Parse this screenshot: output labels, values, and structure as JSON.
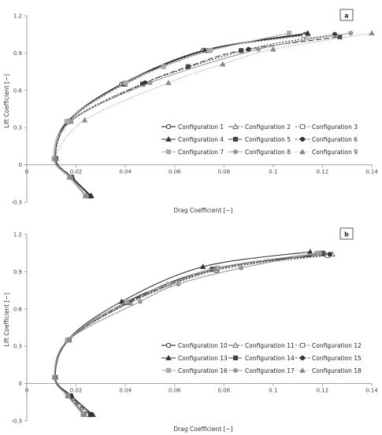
{
  "chart_data": [
    {
      "type": "line",
      "panel_label": "a",
      "xlabel": "Drag Coefficient [−]",
      "ylabel": "Lift Coefficient [−]",
      "xlim": [
        0,
        0.14
      ],
      "ylim": [
        -0.3,
        1.2
      ],
      "xticks": [
        "0",
        "0.02",
        "0.04",
        "0.06",
        "0.08",
        "0.1",
        "0.12",
        "0.14"
      ],
      "yticks": [
        "-0.3",
        "0",
        "0.3",
        "0.6",
        "0.9",
        "1.2"
      ],
      "grid": false,
      "legend_position": "lower-right",
      "series": [
        {
          "name": "Configuration 1",
          "color": "#111111",
          "dash": "",
          "marker": "circle-open",
          "points": [
            [
              0.0257,
              -0.25
            ],
            [
              0.018,
              -0.1
            ],
            [
              0.0115,
              0.05
            ],
            [
              0.0165,
              0.35
            ],
            [
              0.0385,
              0.65
            ],
            [
              0.0715,
              0.92
            ],
            [
              0.113,
              1.05
            ]
          ]
        },
        {
          "name": "Configuration 2",
          "color": "#555555",
          "dash": "6,2",
          "marker": "triangle-open",
          "points": [
            [
              0.026,
              -0.25
            ],
            [
              0.0185,
              -0.1
            ],
            [
              0.0118,
              0.05
            ],
            [
              0.0168,
              0.35
            ],
            [
              0.039,
              0.65
            ],
            [
              0.072,
              0.92
            ],
            [
              0.114,
              1.05
            ]
          ]
        },
        {
          "name": "Configuration 3",
          "color": "#666666",
          "dash": "2,2",
          "marker": "square-open",
          "points": [
            [
              0.0255,
              -0.25
            ],
            [
              0.0182,
              -0.1
            ],
            [
              0.0118,
              0.05
            ],
            [
              0.0172,
              0.35
            ],
            [
              0.04,
              0.65
            ],
            [
              0.0735,
              0.92
            ],
            [
              0.1125,
              1.04
            ]
          ]
        },
        {
          "name": "Configuration 4",
          "color": "#333333",
          "dash": "",
          "marker": "triangle-filled",
          "points": [
            [
              0.0262,
              -0.25
            ],
            [
              0.0184,
              -0.1
            ],
            [
              0.0116,
              0.05
            ],
            [
              0.0167,
              0.35
            ],
            [
              0.0392,
              0.65
            ],
            [
              0.0722,
              0.92
            ],
            [
              0.114,
              1.06
            ]
          ]
        },
        {
          "name": "Configuration 5",
          "color": "#444444",
          "dash": "7,3",
          "marker": "square-filled",
          "points": [
            [
              0.0255,
              -0.25
            ],
            [
              0.0182,
              -0.1
            ],
            [
              0.0116,
              0.05
            ],
            [
              0.0178,
              0.35
            ],
            [
              0.047,
              0.65
            ],
            [
              0.0655,
              0.79
            ],
            [
              0.087,
              0.92
            ],
            [
              0.127,
              1.03
            ]
          ]
        },
        {
          "name": "Configuration 6",
          "color": "#333333",
          "dash": "2,2",
          "marker": "circle-filled",
          "points": [
            [
              0.0258,
              -0.25
            ],
            [
              0.0183,
              -0.1
            ],
            [
              0.0117,
              0.05
            ],
            [
              0.0175,
              0.35
            ],
            [
              0.048,
              0.66
            ],
            [
              0.09,
              0.93
            ],
            [
              0.125,
              1.05
            ]
          ]
        },
        {
          "name": "Configuration 7",
          "color": "#aaaaaa",
          "dash": "",
          "marker": "square-filled",
          "points": [
            [
              0.0238,
              -0.25
            ],
            [
              0.0172,
              -0.1
            ],
            [
              0.011,
              0.05
            ],
            [
              0.0162,
              0.35
            ],
            [
              0.04,
              0.66
            ],
            [
              0.0555,
              0.79
            ],
            [
              0.0745,
              0.92
            ],
            [
              0.1065,
              1.06
            ]
          ]
        },
        {
          "name": "Configuration 8",
          "color": "#999999",
          "dash": "",
          "marker": "circle-filled",
          "points": [
            [
              0.0242,
              -0.25
            ],
            [
              0.0178,
              -0.1
            ],
            [
              0.0114,
              0.05
            ],
            [
              0.0178,
              0.35
            ],
            [
              0.05,
              0.66
            ],
            [
              0.094,
              0.93
            ],
            [
              0.1315,
              1.06
            ]
          ]
        },
        {
          "name": "Configuration 9",
          "color": "#888888",
          "dash": "1,2",
          "marker": "triangle-filled",
          "points": [
            [
              0.024,
              -0.25
            ],
            [
              0.0178,
              -0.1
            ],
            [
              0.0116,
              0.05
            ],
            [
              0.0235,
              0.36
            ],
            [
              0.0575,
              0.66
            ],
            [
              0.0795,
              0.81
            ],
            [
              0.1,
              0.93
            ],
            [
              0.14,
              1.06
            ]
          ]
        }
      ]
    },
    {
      "type": "line",
      "panel_label": "b",
      "xlabel": "Drag Coefficient [−]",
      "ylabel": "Lift Coefficient [−]",
      "xlim": [
        0,
        0.14
      ],
      "ylim": [
        -0.3,
        1.2
      ],
      "xticks": [
        "0",
        "0.02",
        "0.04",
        "0.06",
        "0.08",
        "0.1",
        "0.12",
        "0.14"
      ],
      "yticks": [
        "-0.3",
        "0",
        "0.3",
        "0.6",
        "0.9",
        "1.2"
      ],
      "grid": false,
      "legend_position": "lower-right",
      "series": [
        {
          "name": "Configuration 10",
          "color": "#111111",
          "dash": "",
          "marker": "circle-open",
          "points": [
            [
              0.0235,
              -0.25
            ],
            [
              0.0168,
              -0.1
            ],
            [
              0.0115,
              0.05
            ],
            [
              0.0168,
              0.35
            ],
            [
              0.04,
              0.65
            ],
            [
              0.075,
              0.92
            ],
            [
              0.121,
              1.04
            ]
          ]
        },
        {
          "name": "Configuration 11",
          "color": "#555555",
          "dash": "6,2",
          "marker": "triangle-open",
          "points": [
            [
              0.0245,
              -0.25
            ],
            [
              0.0172,
              -0.1
            ],
            [
              0.0116,
              0.05
            ],
            [
              0.017,
              0.35
            ],
            [
              0.0415,
              0.65
            ],
            [
              0.0765,
              0.92
            ],
            [
              0.124,
              1.04
            ]
          ]
        },
        {
          "name": "Configuration 12",
          "color": "#666666",
          "dash": "2,2",
          "marker": "square-open",
          "points": [
            [
              0.025,
              -0.25
            ],
            [
              0.0175,
              -0.1
            ],
            [
              0.0116,
              0.05
            ],
            [
              0.0172,
              0.35
            ],
            [
              0.042,
              0.65
            ],
            [
              0.077,
              0.91
            ],
            [
              0.122,
              1.03
            ]
          ]
        },
        {
          "name": "Configuration 13",
          "color": "#333333",
          "dash": "",
          "marker": "triangle-filled",
          "points": [
            [
              0.0268,
              -0.25
            ],
            [
              0.0182,
              -0.1
            ],
            [
              0.0114,
              0.05
            ],
            [
              0.0165,
              0.35
            ],
            [
              0.0385,
              0.66
            ],
            [
              0.0715,
              0.94
            ],
            [
              0.115,
              1.06
            ]
          ]
        },
        {
          "name": "Configuration 14",
          "color": "#444444",
          "dash": "7,3",
          "marker": "square-filled",
          "points": [
            [
              0.0258,
              -0.25
            ],
            [
              0.0178,
              -0.1
            ],
            [
              0.0115,
              0.05
            ],
            [
              0.0168,
              0.35
            ],
            [
              0.0405,
              0.65
            ],
            [
              0.0755,
              0.92
            ],
            [
              0.12,
              1.05
            ]
          ]
        },
        {
          "name": "Configuration 15",
          "color": "#333333",
          "dash": "2,2",
          "marker": "circle-filled",
          "points": [
            [
              0.0262,
              -0.25
            ],
            [
              0.018,
              -0.1
            ],
            [
              0.0116,
              0.05
            ],
            [
              0.017,
              0.35
            ],
            [
              0.0415,
              0.65
            ],
            [
              0.0775,
              0.92
            ],
            [
              0.123,
              1.04
            ]
          ]
        },
        {
          "name": "Configuration 16",
          "color": "#aaaaaa",
          "dash": "",
          "marker": "square-filled",
          "points": [
            [
              0.0228,
              -0.25
            ],
            [
              0.0165,
              -0.1
            ],
            [
              0.0112,
              0.05
            ],
            [
              0.0165,
              0.35
            ],
            [
              0.0405,
              0.66
            ],
            [
              0.0575,
              0.8
            ],
            [
              0.0775,
              0.93
            ],
            [
              0.118,
              1.05
            ]
          ]
        },
        {
          "name": "Configuration 17",
          "color": "#999999",
          "dash": "",
          "marker": "circle-filled",
          "points": [
            [
              0.0232,
              -0.25
            ],
            [
              0.0168,
              -0.1
            ],
            [
              0.0113,
              0.05
            ],
            [
              0.0168,
              0.35
            ],
            [
              0.046,
              0.66
            ],
            [
              0.0615,
              0.8
            ],
            [
              0.087,
              0.93
            ],
            [
              0.119,
              1.05
            ]
          ]
        },
        {
          "name": "Configuration 18",
          "color": "#888888",
          "dash": "1,2",
          "marker": "triangle-filled",
          "points": [
            [
              0.0232,
              -0.25
            ],
            [
              0.0168,
              -0.1
            ],
            [
              0.0114,
              0.05
            ],
            [
              0.0172,
              0.35
            ],
            [
              0.0415,
              0.65
            ],
            [
              0.0765,
              0.92
            ],
            [
              0.117,
              1.04
            ]
          ]
        }
      ]
    }
  ]
}
